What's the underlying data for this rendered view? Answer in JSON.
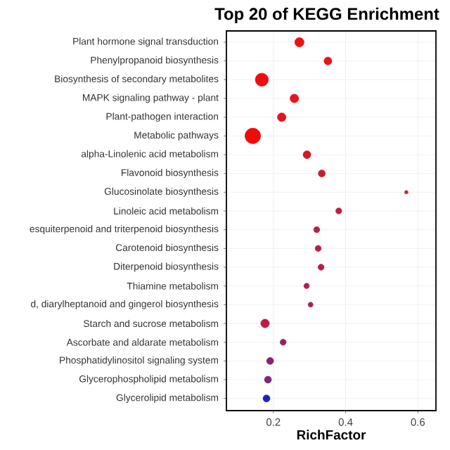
{
  "chart_data": {
    "type": "bubble",
    "title": "Top 20 of KEGG Enrichment",
    "xlabel": "RichFactor",
    "categories": [
      "Plant hormone signal transduction",
      "Phenylpropanoid biosynthesis",
      "Biosynthesis of secondary metabolites",
      "MAPK signaling pathway - plant",
      "Plant-pathogen interaction",
      "Metabolic pathways",
      "alpha-Linolenic acid metabolism",
      "Flavonoid biosynthesis",
      "Glucosinolate biosynthesis",
      "Linoleic acid metabolism",
      "esquiterpenoid and triterpenoid biosynthesis",
      "Carotenoid biosynthesis",
      "Diterpenoid biosynthesis",
      "Thiamine metabolism",
      "d, diarylheptanoid and gingerol biosynthesis",
      "Starch and sucrose metabolism",
      "Ascorbate and aldarate metabolism",
      "Phosphatidylinositol signaling system",
      "Glycerophospholipid metabolism",
      "Glycerolipid metabolism"
    ],
    "values": [
      0.272,
      0.351,
      0.168,
      0.258,
      0.223,
      0.143,
      0.293,
      0.334,
      0.568,
      0.381,
      0.32,
      0.324,
      0.332,
      0.292,
      0.303,
      0.177,
      0.227,
      0.191,
      0.185,
      0.181
    ],
    "sizes": [
      0.35,
      0.25,
      0.7,
      0.3,
      0.3,
      1,
      0.25,
      0.2,
      0.05,
      0.15,
      0.15,
      0.15,
      0.15,
      0.12,
      0.1,
      0.3,
      0.15,
      0.2,
      0.2,
      0.2
    ],
    "colors": [
      "#ee1111",
      "#e81418",
      "#ee0c0c",
      "#e8141a",
      "#e0161e",
      "#f00a0a",
      "#d01a2a",
      "#c81c30",
      "#c52035",
      "#bf1f3a",
      "#b3204a",
      "#b42048",
      "#b2204a",
      "#b01f50",
      "#a82055",
      "#c01a45",
      "#9a2060",
      "#8a2070",
      "#802878",
      "#2020c0"
    ],
    "orientation": "horizontal",
    "xlim": [
      0.07,
      0.65
    ],
    "xticks": [
      0.2,
      0.4,
      0.6
    ],
    "grid": true
  }
}
